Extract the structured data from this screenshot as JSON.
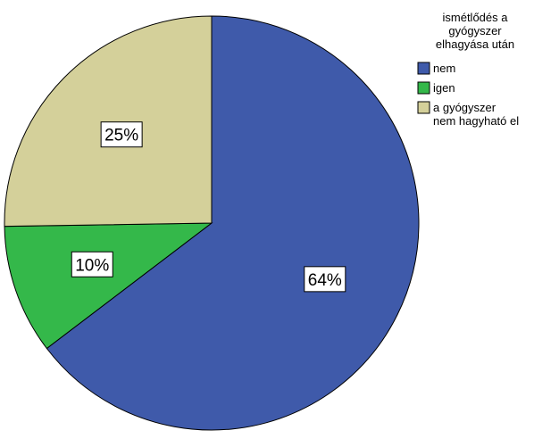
{
  "chart_data": {
    "type": "pie",
    "legend": {
      "title_lines": [
        "ismétlődés a",
        "gyógyszer",
        "elhagyása után"
      ],
      "position": "top-right"
    },
    "slices": [
      {
        "label_lines": [
          "nem"
        ],
        "value": 64,
        "display": "64%",
        "color": "#3f5aaa"
      },
      {
        "label_lines": [
          "igen"
        ],
        "value": 10,
        "display": "10%",
        "color": "#34b84a"
      },
      {
        "label_lines": [
          "a gyógyszer",
          "nem hagyható el"
        ],
        "value": 25,
        "display": "25%",
        "color": "#d4d09a"
      }
    ]
  }
}
